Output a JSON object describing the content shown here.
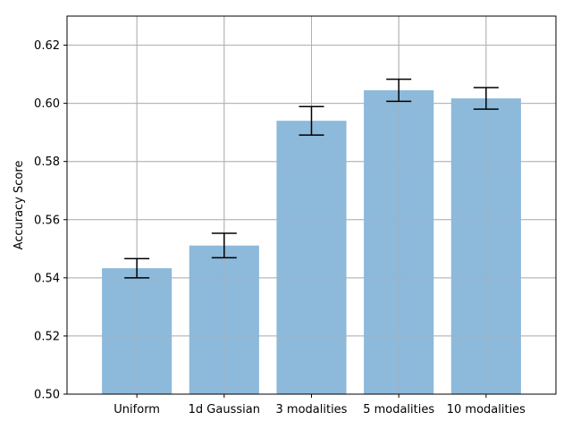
{
  "chart_data": {
    "type": "bar",
    "title": "",
    "xlabel": "",
    "ylabel": "Accuracy Score",
    "categories": [
      "Uniform",
      "1d Gaussian",
      "3 modalities",
      "5 modalities",
      "10 modalities"
    ],
    "values": [
      0.5433,
      0.5511,
      0.594,
      0.6045,
      0.6017
    ],
    "errors": [
      0.0033,
      0.0042,
      0.0049,
      0.0038,
      0.0037
    ],
    "ylim": [
      0.5,
      0.63
    ],
    "yticks": [
      0.5,
      0.52,
      0.54,
      0.56,
      0.58,
      0.6,
      0.62
    ],
    "ytick_labels": [
      "0.50",
      "0.52",
      "0.54",
      "0.56",
      "0.58",
      "0.60",
      "0.62"
    ],
    "grid": true,
    "bar_color": "#8db9da",
    "error_color": "#000000",
    "grid_color": "#b0b0b0"
  }
}
